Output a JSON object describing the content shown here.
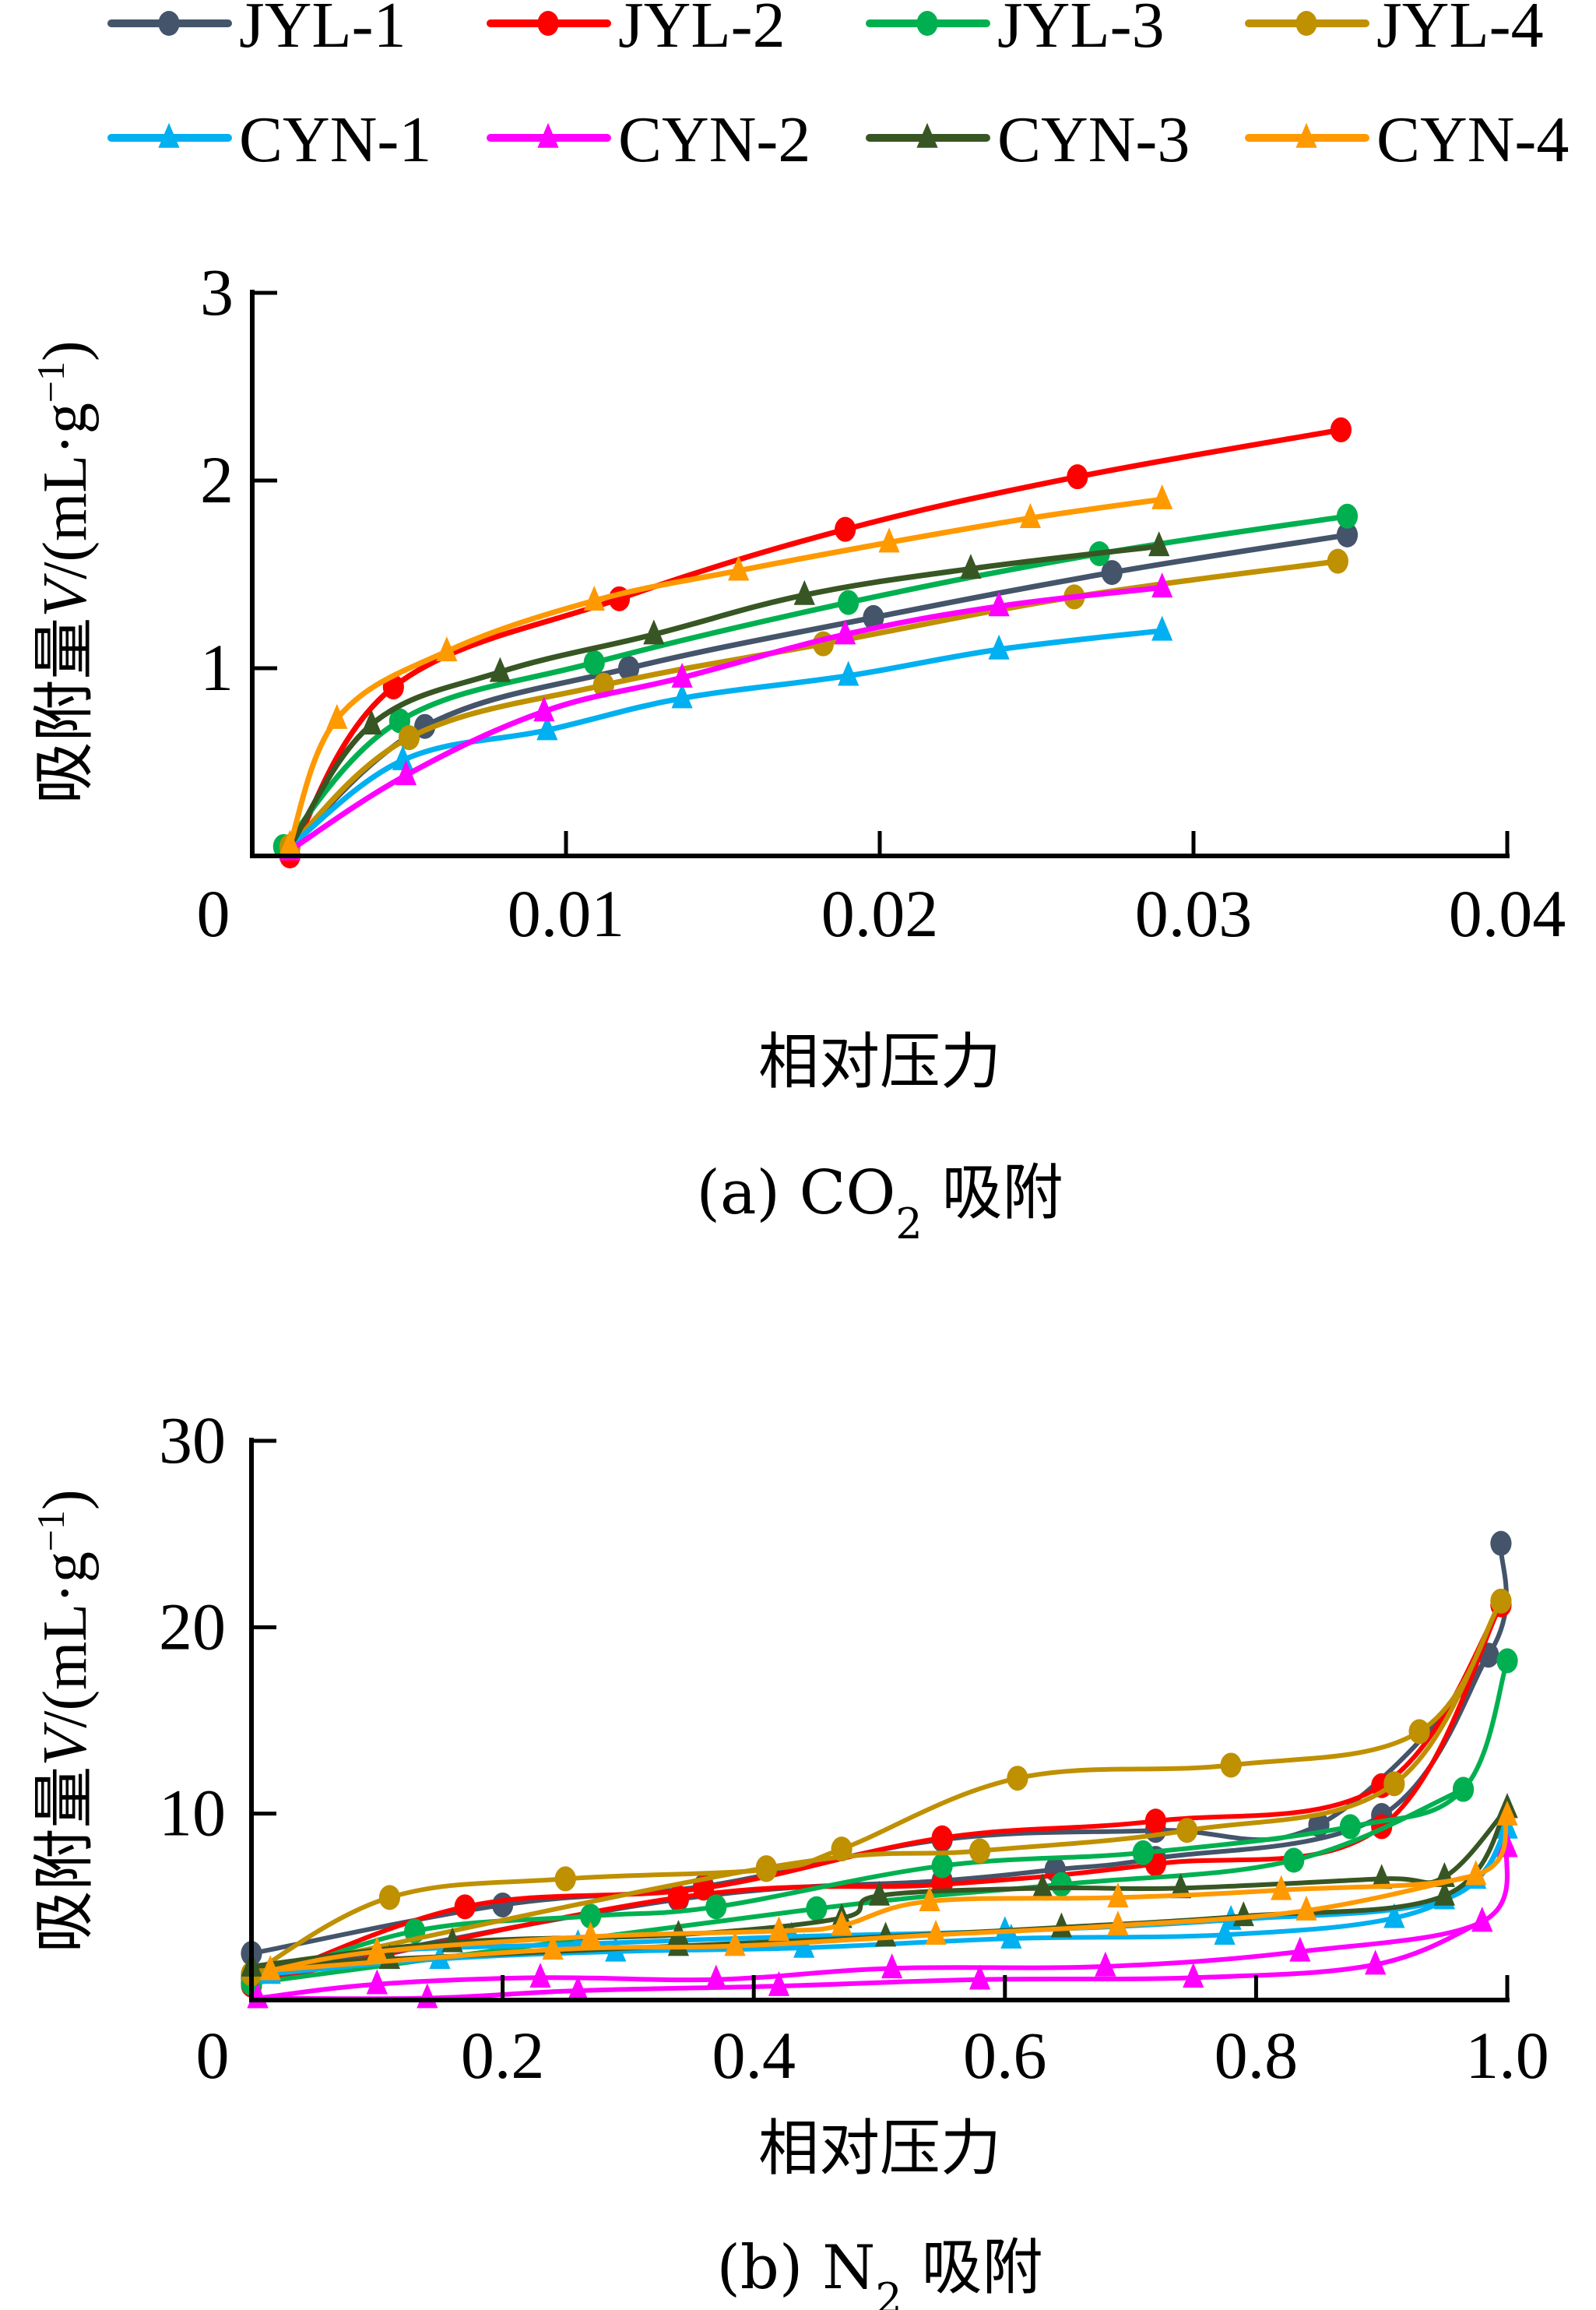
{
  "legend": {
    "items": [
      {
        "name": "JYL-1",
        "color": "#44546A",
        "marker": "circle"
      },
      {
        "name": "JYL-2",
        "color": "#FF0000",
        "marker": "circle"
      },
      {
        "name": "JYL-3",
        "color": "#00B050",
        "marker": "circle"
      },
      {
        "name": "JYL-4",
        "color": "#BF9000",
        "marker": "circle"
      },
      {
        "name": "CYN-1",
        "color": "#00B0F0",
        "marker": "triangle"
      },
      {
        "name": "CYN-2",
        "color": "#FF00FF",
        "marker": "triangle"
      },
      {
        "name": "CYN-3",
        "color": "#375623",
        "marker": "triangle"
      },
      {
        "name": "CYN-4",
        "color": "#FF9900",
        "marker": "triangle"
      }
    ]
  },
  "chart_data": [
    {
      "type": "line",
      "id": "co2",
      "title": "(a) CO2 吸附",
      "caption_prefix": "(a) CO",
      "caption_sub": "2",
      "caption_suffix": " 吸附",
      "xlabel": "相对压力",
      "ylabel_prefix": "吸附量",
      "ylabel_var": "V",
      "ylabel_unit": "/(mL·g",
      "ylabel_sup": "−1",
      "ylabel_close": ")",
      "xlim": [
        0,
        0.04
      ],
      "ylim": [
        0,
        3
      ],
      "xticks": [
        0,
        0.01,
        0.02,
        0.03,
        0.04
      ],
      "xtick_labels": [
        "0",
        "0.01",
        "0.02",
        "0.03",
        "0.04"
      ],
      "yticks": [
        1,
        2,
        3
      ],
      "ytick_labels": [
        "1",
        "2",
        "3"
      ],
      "grid": false,
      "legend_position": "top",
      "series": [
        {
          "name": "JYL-1",
          "branches": [
            [
              [
                0.0012,
                0.05
              ],
              [
                0.0055,
                0.69
              ],
              [
                0.012,
                1.0
              ],
              [
                0.0198,
                1.27
              ],
              [
                0.0274,
                1.51
              ],
              [
                0.0349,
                1.71
              ]
            ]
          ]
        },
        {
          "name": "JYL-2",
          "branches": [
            [
              [
                0.0012,
                0.0
              ],
              [
                0.0045,
                0.9
              ],
              [
                0.0117,
                1.37
              ],
              [
                0.0189,
                1.74
              ],
              [
                0.0263,
                2.02
              ],
              [
                0.0347,
                2.27
              ]
            ]
          ]
        },
        {
          "name": "JYL-3",
          "branches": [
            [
              [
                0.001,
                0.05
              ],
              [
                0.0047,
                0.72
              ],
              [
                0.0109,
                1.03
              ],
              [
                0.019,
                1.35
              ],
              [
                0.027,
                1.61
              ],
              [
                0.0349,
                1.81
              ]
            ]
          ]
        },
        {
          "name": "JYL-4",
          "branches": [
            [
              [
                0.0012,
                0.05
              ],
              [
                0.005,
                0.63
              ],
              [
                0.0112,
                0.91
              ],
              [
                0.0182,
                1.13
              ],
              [
                0.0262,
                1.38
              ],
              [
                0.0346,
                1.57
              ]
            ]
          ]
        },
        {
          "name": "CYN-1",
          "branches": [
            [
              [
                0.0012,
                0.05
              ],
              [
                0.0048,
                0.51
              ],
              [
                0.0094,
                0.67
              ],
              [
                0.0137,
                0.84
              ],
              [
                0.019,
                0.96
              ],
              [
                0.0238,
                1.1
              ],
              [
                0.029,
                1.2
              ]
            ]
          ]
        },
        {
          "name": "CYN-2",
          "branches": [
            [
              [
                0.0012,
                0.03
              ],
              [
                0.0049,
                0.43
              ],
              [
                0.0093,
                0.77
              ],
              [
                0.0137,
                0.95
              ],
              [
                0.0189,
                1.18
              ],
              [
                0.0238,
                1.33
              ],
              [
                0.029,
                1.43
              ]
            ]
          ]
        },
        {
          "name": "CYN-3",
          "branches": [
            [
              [
                0.0012,
                0.05
              ],
              [
                0.0038,
                0.7
              ],
              [
                0.0079,
                0.98
              ],
              [
                0.0128,
                1.18
              ],
              [
                0.0176,
                1.39
              ],
              [
                0.0229,
                1.53
              ],
              [
                0.0289,
                1.65
              ]
            ]
          ]
        },
        {
          "name": "CYN-4",
          "branches": [
            [
              [
                0.0012,
                0.06
              ],
              [
                0.0027,
                0.73
              ],
              [
                0.0062,
                1.09
              ],
              [
                0.0109,
                1.36
              ],
              [
                0.0155,
                1.52
              ],
              [
                0.0203,
                1.67
              ],
              [
                0.0248,
                1.8
              ],
              [
                0.029,
                1.9
              ]
            ]
          ]
        }
      ]
    },
    {
      "type": "line",
      "id": "n2",
      "title": "(b) N2 吸附",
      "caption_prefix": "(b) N",
      "caption_sub": "2",
      "caption_suffix": " 吸附",
      "xlabel": "相对压力",
      "ylabel_prefix": "吸附量",
      "ylabel_var": "V",
      "ylabel_unit": "/(mL·g",
      "ylabel_sup": "−1",
      "ylabel_close": ")",
      "xlim": [
        0,
        1.0
      ],
      "ylim": [
        0,
        30
      ],
      "xticks": [
        0,
        0.2,
        0.4,
        0.6,
        0.8,
        1.0
      ],
      "xtick_labels": [
        "0",
        "0.2",
        "0.4",
        "0.6",
        "0.8",
        "1.0"
      ],
      "yticks": [
        10,
        20,
        30
      ],
      "ytick_labels": [
        "10",
        "20",
        "30"
      ],
      "grid": false,
      "series": [
        {
          "name": "JYL-1",
          "branches": [
            [
              [
                0.0,
                2.5
              ],
              [
                0.2,
                5.1
              ],
              [
                0.36,
                6.1
              ],
              [
                0.55,
                8.6
              ],
              [
                0.72,
                9.1
              ],
              [
                0.85,
                9.4
              ],
              [
                0.985,
                18.5
              ],
              [
                0.995,
                24.5
              ]
            ],
            [
              [
                0.0,
                1.2
              ],
              [
                0.34,
                5.4
              ],
              [
                0.55,
                6.4
              ],
              [
                0.64,
                7.0
              ],
              [
                0.72,
                7.6
              ],
              [
                0.9,
                9.9
              ],
              [
                0.985,
                18.5
              ]
            ]
          ]
        },
        {
          "name": "JYL-2",
          "branches": [
            [
              [
                0.0,
                0.8
              ],
              [
                0.17,
                5.0
              ],
              [
                0.36,
                6.0
              ],
              [
                0.55,
                8.7
              ],
              [
                0.72,
                9.6
              ],
              [
                0.9,
                11.5
              ],
              [
                0.995,
                21.2
              ]
            ],
            [
              [
                0.0,
                0.9
              ],
              [
                0.34,
                5.5
              ],
              [
                0.55,
                6.2
              ],
              [
                0.72,
                7.3
              ],
              [
                0.9,
                9.3
              ],
              [
                0.995,
                21.2
              ]
            ]
          ]
        },
        {
          "name": "JYL-3",
          "branches": [
            [
              [
                0.0,
                0.9
              ],
              [
                0.13,
                3.7
              ],
              [
                0.27,
                4.5
              ],
              [
                0.37,
                5.0
              ],
              [
                0.55,
                7.2
              ],
              [
                0.71,
                7.9
              ],
              [
                0.875,
                9.3
              ],
              [
                0.965,
                11.3
              ],
              [
                1.0,
                18.2
              ]
            ],
            [
              [
                0.0,
                0.9
              ],
              [
                0.45,
                4.9
              ],
              [
                0.645,
                6.2
              ],
              [
                0.83,
                7.5
              ],
              [
                0.965,
                11.3
              ]
            ]
          ]
        },
        {
          "name": "JYL-4",
          "branches": [
            [
              [
                0.0,
                1.4
              ],
              [
                0.11,
                5.5
              ],
              [
                0.25,
                6.5
              ],
              [
                0.41,
                7.0
              ],
              [
                0.47,
                8.1
              ],
              [
                0.61,
                11.9
              ],
              [
                0.78,
                12.6
              ],
              [
                0.93,
                14.4
              ],
              [
                0.995,
                21.4
              ]
            ],
            [
              [
                0.0,
                1.4
              ],
              [
                0.41,
                7.1
              ],
              [
                0.58,
                8.0
              ],
              [
                0.745,
                9.1
              ],
              [
                0.91,
                11.6
              ],
              [
                0.995,
                21.4
              ]
            ]
          ]
        },
        {
          "name": "CYN-1",
          "branches": [
            [
              [
                0.015,
                1.4
              ],
              [
                0.15,
                2.2
              ],
              [
                0.29,
                2.6
              ],
              [
                0.44,
                2.8
              ],
              [
                0.605,
                3.3
              ],
              [
                0.775,
                3.5
              ],
              [
                0.91,
                4.4
              ],
              [
                0.975,
                6.5
              ],
              [
                1.0,
                9.2
              ]
            ],
            [
              [
                0.015,
                1.6
              ],
              [
                0.1,
                2.6
              ],
              [
                0.26,
                3.0
              ],
              [
                0.43,
                3.4
              ],
              [
                0.6,
                3.7
              ],
              [
                0.78,
                4.3
              ],
              [
                0.95,
                5.4
              ],
              [
                1.0,
                9.2
              ]
            ]
          ]
        },
        {
          "name": "CYN-2",
          "branches": [
            [
              [
                0.005,
                0.1
              ],
              [
                0.1,
                0.85
              ],
              [
                0.23,
                1.2
              ],
              [
                0.37,
                1.1
              ],
              [
                0.51,
                1.7
              ],
              [
                0.68,
                1.8
              ],
              [
                0.835,
                2.6
              ],
              [
                0.98,
                4.2
              ],
              [
                1.0,
                8.2
              ]
            ],
            [
              [
                0.005,
                0.1
              ],
              [
                0.14,
                0.1
              ],
              [
                0.26,
                0.5
              ],
              [
                0.42,
                0.75
              ],
              [
                0.58,
                1.1
              ],
              [
                0.75,
                1.2
              ],
              [
                0.895,
                1.9
              ],
              [
                0.98,
                4.2
              ]
            ]
          ]
        },
        {
          "name": "CYN-3",
          "branches": [
            [
              [
                0.0,
                1.8
              ],
              [
                0.16,
                3.1
              ],
              [
                0.34,
                3.5
              ],
              [
                0.47,
                4.4
              ],
              [
                0.5,
                5.6
              ],
              [
                0.63,
                6.0
              ],
              [
                0.74,
                6.0
              ],
              [
                0.9,
                6.5
              ],
              [
                0.95,
                6.6
              ],
              [
                1.0,
                10.3
              ]
            ],
            [
              [
                0.0,
                1.8
              ],
              [
                0.11,
                2.2
              ],
              [
                0.34,
                2.9
              ],
              [
                0.505,
                3.4
              ],
              [
                0.645,
                3.9
              ],
              [
                0.79,
                4.5
              ],
              [
                0.95,
                5.6
              ],
              [
                1.0,
                10.3
              ]
            ]
          ]
        },
        {
          "name": "CYN-4",
          "branches": [
            [
              [
                0.015,
                1.6
              ],
              [
                0.1,
                2.6
              ],
              [
                0.27,
                3.4
              ],
              [
                0.42,
                3.7
              ],
              [
                0.47,
                4.0
              ],
              [
                0.54,
                5.3
              ],
              [
                0.69,
                5.5
              ],
              [
                0.82,
                5.9
              ],
              [
                0.975,
                6.7
              ],
              [
                1.0,
                9.9
              ]
            ],
            [
              [
                0.015,
                1.6
              ],
              [
                0.24,
                2.7
              ],
              [
                0.385,
                2.9
              ],
              [
                0.545,
                3.5
              ],
              [
                0.69,
                4.0
              ],
              [
                0.84,
                4.8
              ],
              [
                0.975,
                6.7
              ]
            ]
          ]
        }
      ]
    }
  ]
}
